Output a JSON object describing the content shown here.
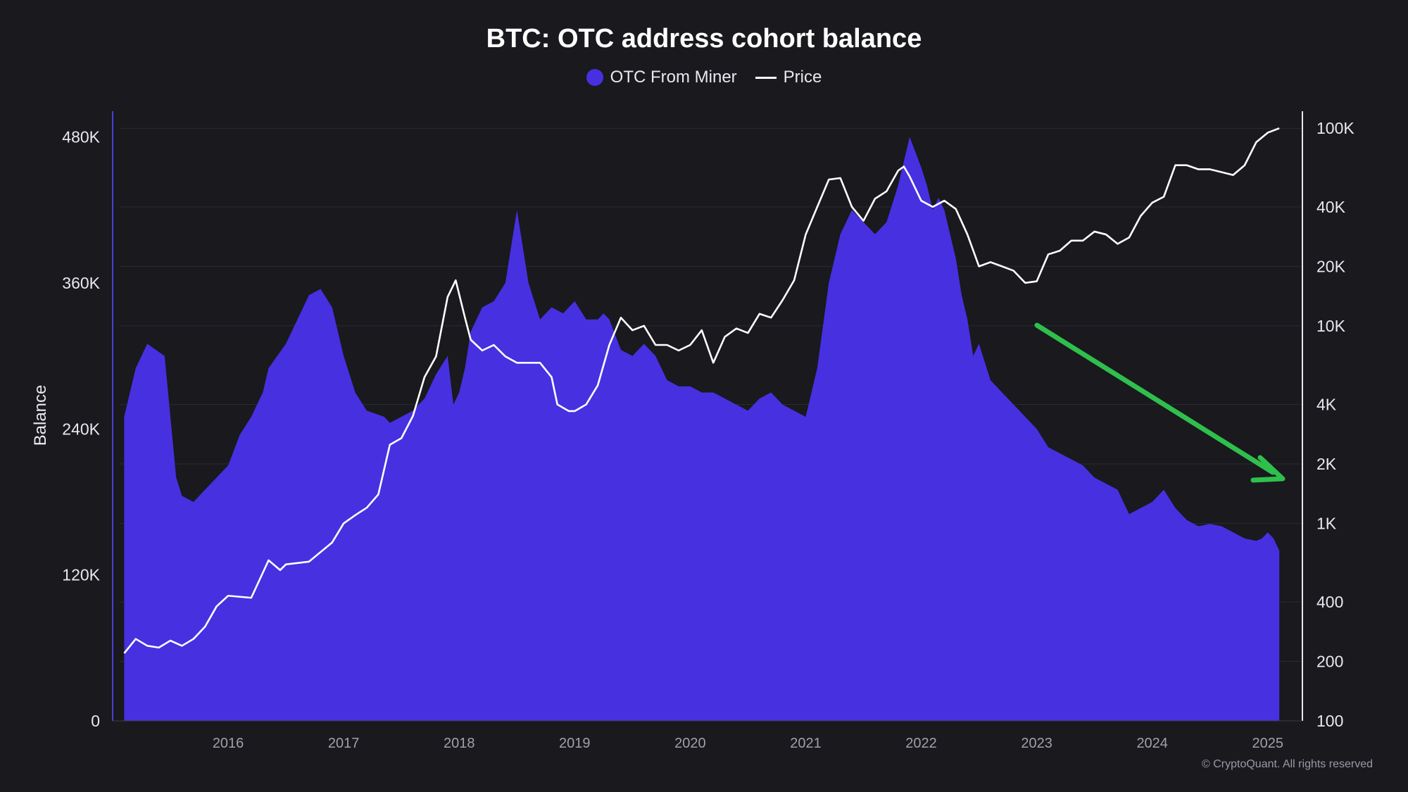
{
  "title": "BTC: OTC address cohort balance",
  "copyright": "© CryptoQuant. All rights reserved",
  "legend": [
    {
      "label": "OTC From Miner",
      "color": "#4730e0",
      "shape": "dot"
    },
    {
      "label": "Price",
      "color": "#ffffff",
      "shape": "line"
    }
  ],
  "colors": {
    "background": "#19191e",
    "area": "#4730e0",
    "price": "#ffffff",
    "arrow": "#2fbf4c",
    "grid": "#2a2a33"
  },
  "chart_data": {
    "type": "area",
    "ylabel": "Balance",
    "xlabel": "",
    "grid": true,
    "legend_placement": "top-center",
    "x_ticks": [
      "2016",
      "2017",
      "2018",
      "2019",
      "2020",
      "2021",
      "2022",
      "2023",
      "2024",
      "2025"
    ],
    "y_left_ticks": [
      "0",
      "120K",
      "240K",
      "360K",
      "480K"
    ],
    "y_right_ticks": [
      "100",
      "200",
      "400",
      "1K",
      "2K",
      "4K",
      "10K",
      "20K",
      "40K",
      "100K"
    ],
    "ylim_left": [
      0,
      500000
    ],
    "ylim_right": [
      100,
      120000
    ],
    "y_right_scale": "log",
    "series": [
      {
        "name": "OTC From Miner",
        "axis": "left",
        "kind": "area",
        "x": [
          2015.1,
          2015.2,
          2015.3,
          2015.45,
          2015.55,
          2015.6,
          2015.7,
          2015.8,
          2015.9,
          2016.0,
          2016.1,
          2016.2,
          2016.3,
          2016.35,
          2016.5,
          2016.6,
          2016.7,
          2016.8,
          2016.9,
          2017.0,
          2017.1,
          2017.2,
          2017.35,
          2017.4,
          2017.5,
          2017.6,
          2017.7,
          2017.8,
          2017.9,
          2017.95,
          2018.0,
          2018.05,
          2018.1,
          2018.2,
          2018.3,
          2018.4,
          2018.45,
          2018.5,
          2018.6,
          2018.7,
          2018.8,
          2018.9,
          2019.0,
          2019.1,
          2019.2,
          2019.25,
          2019.3,
          2019.4,
          2019.5,
          2019.6,
          2019.7,
          2019.8,
          2019.9,
          2020.0,
          2020.1,
          2020.2,
          2020.3,
          2020.4,
          2020.5,
          2020.6,
          2020.7,
          2020.8,
          2020.9,
          2021.0,
          2021.1,
          2021.2,
          2021.3,
          2021.4,
          2021.5,
          2021.6,
          2021.7,
          2021.8,
          2021.9,
          2022.0,
          2022.05,
          2022.1,
          2022.15,
          2022.2,
          2022.25,
          2022.3,
          2022.35,
          2022.4,
          2022.45,
          2022.5,
          2022.6,
          2022.7,
          2022.8,
          2022.9,
          2023.0,
          2023.1,
          2023.2,
          2023.3,
          2023.4,
          2023.5,
          2023.6,
          2023.7,
          2023.8,
          2023.9,
          2024.0,
          2024.1,
          2024.2,
          2024.3,
          2024.4,
          2024.5,
          2024.6,
          2024.7,
          2024.8,
          2024.9,
          2024.95,
          2025.0,
          2025.05,
          2025.1
        ],
        "y": [
          250000,
          290000,
          310000,
          300000,
          200000,
          185000,
          180000,
          190000,
          200000,
          210000,
          235000,
          250000,
          270000,
          290000,
          310000,
          330000,
          350000,
          355000,
          340000,
          300000,
          270000,
          255000,
          250000,
          245000,
          250000,
          255000,
          265000,
          285000,
          300000,
          260000,
          270000,
          290000,
          320000,
          340000,
          345000,
          360000,
          390000,
          420000,
          360000,
          330000,
          340000,
          335000,
          345000,
          330000,
          330000,
          335000,
          330000,
          305000,
          300000,
          310000,
          300000,
          280000,
          275000,
          275000,
          270000,
          270000,
          265000,
          260000,
          255000,
          265000,
          270000,
          260000,
          255000,
          250000,
          290000,
          360000,
          400000,
          420000,
          410000,
          400000,
          410000,
          440000,
          480000,
          455000,
          440000,
          420000,
          430000,
          420000,
          400000,
          380000,
          350000,
          330000,
          300000,
          310000,
          280000,
          270000,
          260000,
          250000,
          240000,
          225000,
          220000,
          215000,
          210000,
          200000,
          195000,
          190000,
          170000,
          175000,
          180000,
          190000,
          175000,
          165000,
          160000,
          162000,
          160000,
          155000,
          150000,
          148000,
          150000,
          155000,
          150000,
          140000
        ],
        "color": "#4730e0"
      },
      {
        "name": "Price",
        "axis": "right",
        "kind": "line",
        "x": [
          2015.1,
          2015.2,
          2015.3,
          2015.4,
          2015.5,
          2015.6,
          2015.7,
          2015.8,
          2015.9,
          2016.0,
          2016.2,
          2016.35,
          2016.45,
          2016.5,
          2016.7,
          2016.9,
          2017.0,
          2017.1,
          2017.2,
          2017.3,
          2017.4,
          2017.5,
          2017.6,
          2017.7,
          2017.8,
          2017.9,
          2017.97,
          2018.05,
          2018.1,
          2018.2,
          2018.3,
          2018.4,
          2018.5,
          2018.6,
          2018.7,
          2018.8,
          2018.85,
          2018.95,
          2019.0,
          2019.1,
          2019.2,
          2019.3,
          2019.4,
          2019.5,
          2019.6,
          2019.7,
          2019.8,
          2019.9,
          2020.0,
          2020.1,
          2020.2,
          2020.3,
          2020.4,
          2020.5,
          2020.6,
          2020.7,
          2020.8,
          2020.9,
          2021.0,
          2021.1,
          2021.2,
          2021.3,
          2021.4,
          2021.5,
          2021.6,
          2021.7,
          2021.8,
          2021.85,
          2021.9,
          2022.0,
          2022.1,
          2022.2,
          2022.3,
          2022.4,
          2022.5,
          2022.6,
          2022.7,
          2022.8,
          2022.9,
          2023.0,
          2023.1,
          2023.2,
          2023.3,
          2023.4,
          2023.5,
          2023.6,
          2023.7,
          2023.8,
          2023.9,
          2024.0,
          2024.1,
          2024.2,
          2024.3,
          2024.4,
          2024.5,
          2024.6,
          2024.7,
          2024.8,
          2024.9,
          2025.0,
          2025.1
        ],
        "y": [
          220,
          260,
          240,
          235,
          255,
          240,
          260,
          300,
          380,
          430,
          420,
          650,
          580,
          620,
          640,
          800,
          1000,
          1100,
          1200,
          1400,
          2500,
          2700,
          3500,
          5500,
          7000,
          14000,
          17000,
          11000,
          8500,
          7500,
          8000,
          7000,
          6500,
          6500,
          6500,
          5500,
          4000,
          3700,
          3700,
          4000,
          5000,
          8000,
          11000,
          9500,
          10000,
          8000,
          8000,
          7500,
          8000,
          9500,
          6500,
          8800,
          9700,
          9200,
          11500,
          11000,
          13500,
          17000,
          29000,
          40000,
          55000,
          56000,
          40000,
          34000,
          44000,
          48000,
          61000,
          64000,
          57000,
          43000,
          40000,
          43000,
          39000,
          29000,
          20000,
          21000,
          20000,
          19000,
          16500,
          16800,
          23000,
          24000,
          27000,
          27000,
          30000,
          29000,
          26000,
          28000,
          36000,
          42000,
          45000,
          65000,
          65000,
          62000,
          62000,
          60000,
          58000,
          65000,
          85000,
          95000,
          100000
        ],
        "color": "#ffffff"
      }
    ],
    "annotations": [
      {
        "kind": "arrow",
        "color": "#2fbf4c",
        "from": {
          "x": 2022.95,
          "y": 0
        },
        "to": {
          "x": 2025.1,
          "y": 0
        }
      }
    ]
  }
}
